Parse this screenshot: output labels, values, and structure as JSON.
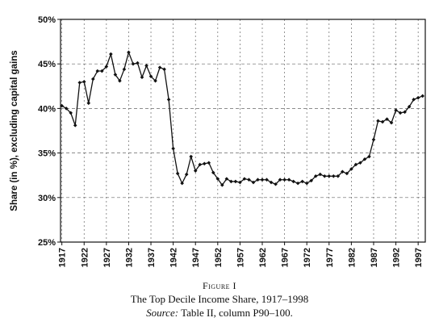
{
  "figure": {
    "label": "Figure I",
    "title": "The Top Decile Income Share, 1917–1998",
    "source_label": "Source:",
    "source_text": "Table II, column P90–100."
  },
  "chart_data": {
    "type": "line",
    "ylabel": "Share (in %), excluding capital gains",
    "xlabel": "",
    "ylim": [
      25,
      50
    ],
    "xlim": [
      1917,
      1998
    ],
    "ytick_values": [
      25,
      30,
      35,
      40,
      45,
      50
    ],
    "ytick_labels": [
      "25%",
      "30%",
      "35%",
      "40%",
      "45%",
      "50%"
    ],
    "xtick_values": [
      1917,
      1922,
      1927,
      1932,
      1937,
      1942,
      1947,
      1952,
      1957,
      1962,
      1967,
      1972,
      1977,
      1982,
      1987,
      1992,
      1997
    ],
    "xtick_labels": [
      "1917",
      "1922",
      "1927",
      "1932",
      "1937",
      "1942",
      "1947",
      "1952",
      "1957",
      "1962",
      "1967",
      "1972",
      "1977",
      "1982",
      "1987",
      "1992",
      "1997"
    ],
    "grid": "dashed",
    "marker": "diamond",
    "series": [
      {
        "x": [
          1917,
          1918,
          1919,
          1920,
          1921,
          1922,
          1923,
          1924,
          1925,
          1926,
          1927,
          1928,
          1929,
          1930,
          1931,
          1932,
          1933,
          1934,
          1935,
          1936,
          1937,
          1938,
          1939,
          1940,
          1941,
          1942,
          1943,
          1944,
          1945,
          1946,
          1947,
          1948,
          1949,
          1950,
          1951,
          1952,
          1953,
          1954,
          1955,
          1956,
          1957,
          1958,
          1959,
          1960,
          1961,
          1962,
          1963,
          1964,
          1965,
          1966,
          1967,
          1968,
          1969,
          1970,
          1971,
          1972,
          1973,
          1974,
          1975,
          1976,
          1977,
          1978,
          1979,
          1980,
          1981,
          1982,
          1983,
          1984,
          1985,
          1986,
          1987,
          1988,
          1989,
          1990,
          1991,
          1992,
          1993,
          1994,
          1995,
          1996,
          1997,
          1998
        ],
        "y": [
          40.3,
          40.0,
          39.5,
          38.1,
          42.9,
          43.0,
          40.6,
          43.3,
          44.2,
          44.2,
          44.7,
          46.1,
          43.8,
          43.1,
          44.4,
          46.3,
          45.0,
          45.1,
          43.5,
          44.8,
          43.6,
          43.1,
          44.6,
          44.4,
          41.0,
          35.5,
          32.7,
          31.6,
          32.6,
          34.6,
          33.0,
          33.7,
          33.8,
          33.9,
          32.8,
          32.1,
          31.4,
          32.1,
          31.8,
          31.8,
          31.7,
          32.1,
          32.0,
          31.7,
          32.0,
          32.0,
          32.0,
          31.7,
          31.5,
          32.0,
          32.0,
          32.0,
          31.8,
          31.6,
          31.8,
          31.6,
          31.9,
          32.4,
          32.6,
          32.4,
          32.4,
          32.4,
          32.4,
          32.9,
          32.7,
          33.2,
          33.7,
          33.9,
          34.3,
          34.6,
          36.5,
          38.6,
          38.5,
          38.8,
          38.4,
          39.8,
          39.5,
          39.6,
          40.2,
          41.0,
          41.2,
          41.4
        ]
      }
    ]
  }
}
